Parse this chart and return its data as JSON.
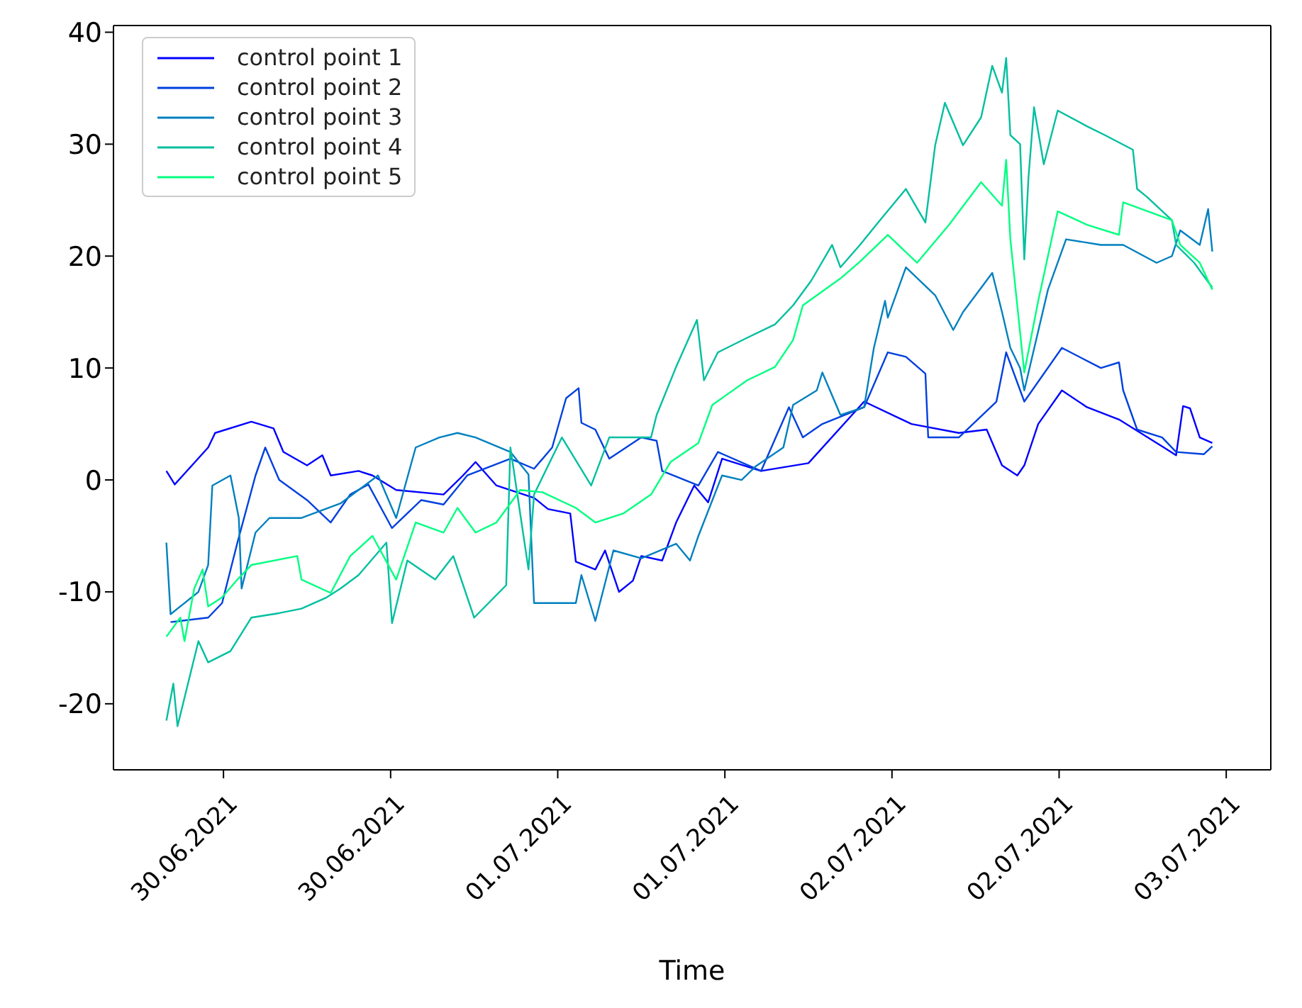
{
  "chart_data": {
    "type": "line",
    "xlabel": "Time",
    "xlim": [
      "2021-06-29T16:06",
      "2021-07-03T03:12"
    ],
    "ylim": [
      -25.9,
      40.6
    ],
    "xticks": [
      {
        "value": "2021-06-30T00:00",
        "label": "30.06.2021"
      },
      {
        "value": "2021-06-30T12:00",
        "label": "30.06.2021"
      },
      {
        "value": "2021-07-01T00:00",
        "label": "01.07.2021"
      },
      {
        "value": "2021-07-01T12:00",
        "label": "01.07.2021"
      },
      {
        "value": "2021-07-02T00:00",
        "label": "02.07.2021"
      },
      {
        "value": "2021-07-02T12:00",
        "label": "02.07.2021"
      },
      {
        "value": "2021-07-03T00:00",
        "label": "03.07.2021"
      }
    ],
    "yticks": [
      -20,
      -10,
      0,
      10,
      20,
      30,
      40
    ],
    "legend": "top left",
    "marker": "none",
    "line_style": "solid",
    "series": [
      {
        "name": "control point 1",
        "color": "#0000ff",
        "x": [
          "2021-06-29T19:54",
          "2021-06-29T20:30",
          "2021-06-29T22:54",
          "2021-06-29T23:24",
          "2021-06-30T02:00",
          "2021-06-30T03:36",
          "2021-06-30T04:18",
          "2021-06-30T06:00",
          "2021-06-30T07:06",
          "2021-06-30T07:42",
          "2021-06-30T09:42",
          "2021-06-30T10:42",
          "2021-06-30T12:24",
          "2021-06-30T15:48",
          "2021-06-30T17:12",
          "2021-06-30T18:06",
          "2021-06-30T19:36",
          "2021-06-30T22:18",
          "2021-06-30T23:18",
          "2021-07-01T00:54",
          "2021-07-01T01:18",
          "2021-07-01T02:42",
          "2021-07-01T03:24",
          "2021-07-01T04:24",
          "2021-07-01T05:24",
          "2021-07-01T06:00",
          "2021-07-01T07:30",
          "2021-07-01T08:30",
          "2021-07-01T09:48",
          "2021-07-01T10:48",
          "2021-07-01T11:48",
          "2021-07-01T14:36",
          "2021-07-01T18:00",
          "2021-07-01T22:00",
          "2021-07-02T01:24",
          "2021-07-02T04:48",
          "2021-07-02T06:48",
          "2021-07-02T07:54",
          "2021-07-02T09:00",
          "2021-07-02T09:30",
          "2021-07-02T10:30",
          "2021-07-02T12:12",
          "2021-07-02T14:00",
          "2021-07-02T16:18",
          "2021-07-02T19:24",
          "2021-07-02T20:24",
          "2021-07-02T20:54",
          "2021-07-02T21:24",
          "2021-07-02T22:06",
          "2021-07-02T23:00"
        ],
        "values": [
          0.8,
          -0.4,
          2.9,
          4.2,
          5.2,
          4.6,
          2.5,
          1.3,
          2.2,
          0.4,
          0.8,
          0.4,
          -0.9,
          -1.3,
          0.4,
          1.6,
          -0.5,
          -1.6,
          -2.6,
          -3,
          -7.3,
          -8,
          -6.3,
          -10,
          -9,
          -6.8,
          -7.2,
          -3.8,
          -0.5,
          -2,
          1.9,
          0.8,
          1.5,
          7,
          5,
          4.2,
          4.5,
          1.3,
          0.4,
          1.3,
          5,
          8,
          6.5,
          5.4,
          3,
          2.2,
          6.6,
          6.4,
          3.8,
          3.3
        ]
      },
      {
        "name": "control point 2",
        "color": "#0040df",
        "x": [
          "2021-06-29T20:12",
          "2021-06-29T22:54",
          "2021-06-29T23:54",
          "2021-06-30T01:00",
          "2021-06-30T02:18",
          "2021-06-30T03:00",
          "2021-06-30T04:00",
          "2021-06-30T06:00",
          "2021-06-30T07:42",
          "2021-06-30T09:06",
          "2021-06-30T10:24",
          "2021-06-30T12:06",
          "2021-06-30T14:12",
          "2021-06-30T15:48",
          "2021-06-30T17:30",
          "2021-06-30T20:36",
          "2021-06-30T22:18",
          "2021-06-30T23:36",
          "2021-07-01T00:36",
          "2021-07-01T01:30",
          "2021-07-01T01:42",
          "2021-07-01T02:42",
          "2021-07-01T03:42",
          "2021-07-01T06:00",
          "2021-07-01T07:06",
          "2021-07-01T07:30",
          "2021-07-01T10:06",
          "2021-07-01T11:30",
          "2021-07-01T14:36",
          "2021-07-01T16:36",
          "2021-07-01T17:36",
          "2021-07-01T19:00",
          "2021-07-01T22:00",
          "2021-07-01T23:42",
          "2021-07-02T01:00",
          "2021-07-02T02:24",
          "2021-07-02T02:36",
          "2021-07-02T04:48",
          "2021-07-02T07:30",
          "2021-07-02T08:12",
          "2021-07-02T09:30",
          "2021-07-02T12:12",
          "2021-07-02T15:00",
          "2021-07-02T16:18",
          "2021-07-02T16:36",
          "2021-07-02T17:36",
          "2021-07-02T19:24",
          "2021-07-02T20:24",
          "2021-07-02T22:24",
          "2021-07-02T23:00"
        ],
        "values": [
          -12.7,
          -12.3,
          -11,
          -5.6,
          0.4,
          2.9,
          0,
          -1.8,
          -3.8,
          -1.3,
          -0.4,
          -4.3,
          -1.8,
          -2.2,
          0.4,
          1.9,
          1.0,
          2.9,
          7.3,
          8.2,
          5.1,
          4.5,
          1.9,
          3.8,
          3.5,
          0.8,
          -0.5,
          2.5,
          0.8,
          6.5,
          3.8,
          5,
          6.5,
          11.4,
          11,
          9.5,
          3.8,
          3.8,
          7,
          11.4,
          7,
          11.8,
          10,
          10.5,
          8,
          4.5,
          3.8,
          2.5,
          2.3,
          3.0
        ]
      },
      {
        "name": "control point 3",
        "color": "#0080bf",
        "x": [
          "2021-06-29T19:54",
          "2021-06-29T20:12",
          "2021-06-29T22:12",
          "2021-06-29T22:54",
          "2021-06-29T23:12",
          "2021-06-30T00:30",
          "2021-06-30T01:06",
          "2021-06-30T01:18",
          "2021-06-30T02:18",
          "2021-06-30T03:18",
          "2021-06-30T05:36",
          "2021-06-30T08:24",
          "2021-06-30T09:42",
          "2021-06-30T11:06",
          "2021-06-30T12:24",
          "2021-06-30T13:48",
          "2021-06-30T15:30",
          "2021-06-30T16:48",
          "2021-06-30T18:06",
          "2021-06-30T20:36",
          "2021-06-30T21:54",
          "2021-06-30T22:18",
          "2021-07-01T01:18",
          "2021-07-01T01:42",
          "2021-07-01T02:42",
          "2021-07-01T04:00",
          "2021-07-01T06:00",
          "2021-07-01T08:30",
          "2021-07-01T09:30",
          "2021-07-01T10:06",
          "2021-07-01T11:48",
          "2021-07-01T13:12",
          "2021-07-01T14:12",
          "2021-07-01T16:12",
          "2021-07-01T16:54",
          "2021-07-01T18:36",
          "2021-07-01T19:00",
          "2021-07-01T20:18",
          "2021-07-01T22:00",
          "2021-07-01T22:42",
          "2021-07-01T23:30",
          "2021-07-01T23:42",
          "2021-07-02T01:00",
          "2021-07-02T03:06",
          "2021-07-02T04:24",
          "2021-07-02T05:06",
          "2021-07-02T07:12",
          "2021-07-02T07:54",
          "2021-07-02T08:30",
          "2021-07-02T09:12",
          "2021-07-02T09:30",
          "2021-07-02T11:12",
          "2021-07-02T12:30",
          "2021-07-02T15:00",
          "2021-07-02T16:36",
          "2021-07-02T19:00",
          "2021-07-02T20:06",
          "2021-07-02T20:42",
          "2021-07-02T22:06",
          "2021-07-02T22:42",
          "2021-07-02T23:00"
        ],
        "values": [
          -5.6,
          -12,
          -10,
          -7.6,
          -0.5,
          0.4,
          -3.4,
          -9.7,
          -4.7,
          -3.4,
          -3.4,
          -2.1,
          -0.9,
          0.4,
          -3.4,
          2.9,
          3.8,
          4.2,
          3.8,
          2.5,
          0.5,
          -11,
          -11,
          -8.5,
          -12.6,
          -6.3,
          -7,
          -5.7,
          -7.2,
          -5,
          0.4,
          0,
          1.2,
          2.9,
          6.7,
          8,
          9.6,
          5.8,
          6.5,
          11.8,
          16,
          14.5,
          19,
          16.5,
          13.4,
          15,
          18.5,
          15,
          11.8,
          10,
          8,
          17,
          21.5,
          21,
          21,
          19.4,
          20,
          22.3,
          21,
          24.2,
          20.4
        ]
      },
      {
        "name": "control point 4",
        "color": "#00bf9f",
        "x": [
          "2021-06-29T19:54",
          "2021-06-29T20:24",
          "2021-06-29T20:42",
          "2021-06-29T22:12",
          "2021-06-29T22:54",
          "2021-06-30T00:30",
          "2021-06-30T02:00",
          "2021-06-30T04:00",
          "2021-06-30T05:36",
          "2021-06-30T07:24",
          "2021-06-30T08:24",
          "2021-06-30T09:42",
          "2021-06-30T11:42",
          "2021-06-30T12:06",
          "2021-06-30T13:12",
          "2021-06-30T15:12",
          "2021-06-30T16:30",
          "2021-06-30T18:00",
          "2021-06-30T20:18",
          "2021-06-30T20:36",
          "2021-06-30T21:54",
          "2021-06-30T22:18",
          "2021-07-01T00:18",
          "2021-07-01T02:24",
          "2021-07-01T03:42",
          "2021-07-01T06:42",
          "2021-07-01T07:06",
          "2021-07-01T08:30",
          "2021-07-01T10:00",
          "2021-07-01T10:30",
          "2021-07-01T11:30",
          "2021-07-01T13:36",
          "2021-07-01T15:36",
          "2021-07-01T16:54",
          "2021-07-01T18:12",
          "2021-07-01T19:42",
          "2021-07-01T20:18",
          "2021-07-01T21:42",
          "2021-07-01T23:00",
          "2021-07-02T01:00",
          "2021-07-02T02:24",
          "2021-07-02T03:06",
          "2021-07-02T03:48",
          "2021-07-02T05:06",
          "2021-07-02T06:24",
          "2021-07-02T07:12",
          "2021-07-02T07:54",
          "2021-07-02T08:12",
          "2021-07-02T08:30",
          "2021-07-02T09:12",
          "2021-07-02T09:30",
          "2021-07-02T09:48",
          "2021-07-02T10:12",
          "2021-07-02T10:54",
          "2021-07-02T11:54",
          "2021-07-02T14:00",
          "2021-07-02T15:18",
          "2021-07-02T17:18",
          "2021-07-02T17:36",
          "2021-07-02T18:18",
          "2021-07-02T20:06",
          "2021-07-02T20:24",
          "2021-07-02T21:42",
          "2021-07-02T22:24",
          "2021-07-02T23:00"
        ],
        "values": [
          -21.5,
          -18.2,
          -22,
          -14.4,
          -16.3,
          -15.3,
          -12.3,
          -11.9,
          -11.5,
          -10.5,
          -9.7,
          -8.5,
          -5.6,
          -12.8,
          -7.2,
          -8.9,
          -6.8,
          -12.3,
          -9.4,
          2.9,
          -8,
          -1.3,
          3.8,
          -0.5,
          3.8,
          3.8,
          5.8,
          10.1,
          14.3,
          8.9,
          11.4,
          12.7,
          13.9,
          15.6,
          17.8,
          21,
          19,
          21,
          23,
          26,
          23,
          29.9,
          33.7,
          29.9,
          32.4,
          37,
          34.6,
          37.7,
          30.8,
          30,
          19.7,
          27,
          33.3,
          28.2,
          33,
          31.6,
          30.8,
          29.5,
          26,
          25.3,
          23.2,
          21,
          19.4,
          18.2,
          17.2
        ]
      },
      {
        "name": "control point 5",
        "color": "#00ff80",
        "x": [
          "2021-06-29T19:54",
          "2021-06-29T20:54",
          "2021-06-29T21:12",
          "2021-06-29T21:54",
          "2021-06-29T22:30",
          "2021-06-29T22:54",
          "2021-06-29T23:54",
          "2021-06-30T01:00",
          "2021-06-30T02:00",
          "2021-06-30T05:18",
          "2021-06-30T05:36",
          "2021-06-30T07:42",
          "2021-06-30T09:06",
          "2021-06-30T10:42",
          "2021-06-30T12:24",
          "2021-06-30T13:48",
          "2021-06-30T15:48",
          "2021-06-30T16:48",
          "2021-06-30T18:06",
          "2021-06-30T19:36",
          "2021-06-30T21:18",
          "2021-06-30T22:54",
          "2021-07-01T01:18",
          "2021-07-01T02:42",
          "2021-07-01T04:42",
          "2021-07-01T06:42",
          "2021-07-01T08:06",
          "2021-07-01T10:06",
          "2021-07-01T11:06",
          "2021-07-01T13:36",
          "2021-07-01T15:36",
          "2021-07-01T16:54",
          "2021-07-01T17:36",
          "2021-07-01T20:18",
          "2021-07-01T21:42",
          "2021-07-01T23:42",
          "2021-07-02T01:48",
          "2021-07-02T04:06",
          "2021-07-02T06:24",
          "2021-07-02T07:54",
          "2021-07-02T08:12",
          "2021-07-02T08:30",
          "2021-07-02T09:30",
          "2021-07-02T10:30",
          "2021-07-02T11:54",
          "2021-07-02T14:00",
          "2021-07-02T16:18",
          "2021-07-02T16:36",
          "2021-07-02T20:06",
          "2021-07-02T20:42",
          "2021-07-02T22:06",
          "2021-07-02T23:00"
        ],
        "values": [
          -14,
          -12.3,
          -14.4,
          -9.7,
          -8,
          -11.3,
          -10.5,
          -8.9,
          -7.6,
          -6.8,
          -8.9,
          -10.1,
          -6.8,
          -5,
          -8.9,
          -3.8,
          -4.7,
          -2.5,
          -4.7,
          -3.8,
          -0.9,
          -1.1,
          -2.5,
          -3.8,
          -3,
          -1.3,
          1.6,
          3.3,
          6.7,
          8.9,
          10.1,
          12.5,
          15.6,
          18,
          19.5,
          21.9,
          19.4,
          22.8,
          26.6,
          24.5,
          28.6,
          21.5,
          9.6,
          16,
          24,
          22.8,
          21.9,
          24.8,
          23.2,
          21,
          19.4,
          17
        ]
      }
    ]
  }
}
